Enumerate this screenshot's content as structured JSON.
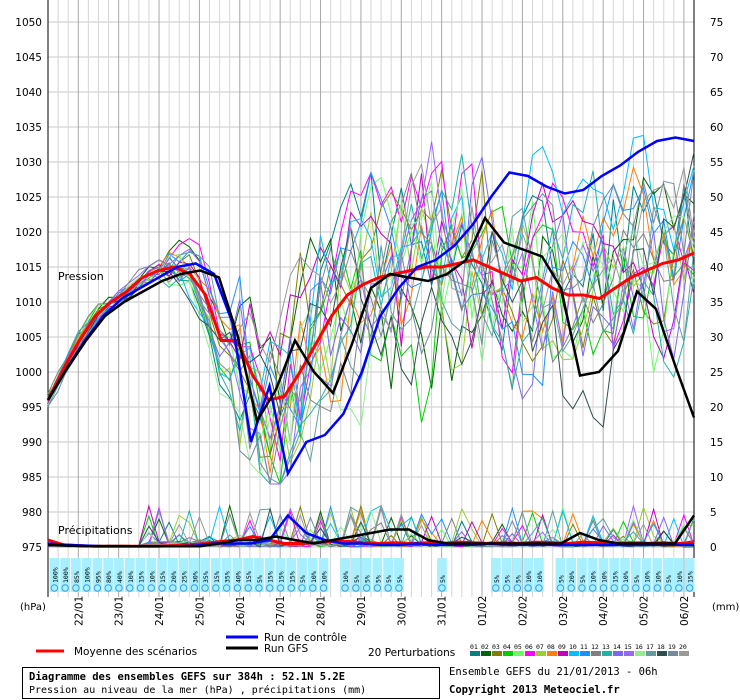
{
  "chart_data": {
    "type": "line",
    "labels": {
      "pressure": "Pression",
      "precip": "Précipitations",
      "left_unit": "(hPa)",
      "right_unit": "(mm)"
    },
    "left_axis": {
      "min": 975,
      "max": 1050,
      "ticks": [
        975,
        980,
        985,
        990,
        995,
        1000,
        1005,
        1010,
        1015,
        1020,
        1025,
        1030,
        1035,
        1040,
        1045,
        1050
      ]
    },
    "right_axis": {
      "min": 0,
      "max": 75,
      "ticks": [
        0,
        5,
        10,
        15,
        20,
        25,
        30,
        35,
        40,
        45,
        50,
        55,
        60,
        65,
        70,
        75
      ]
    },
    "x_hours": {
      "min": 0,
      "max": 384,
      "day_start_offset": 18
    },
    "dates": [
      "22/01",
      "23/01",
      "24/01",
      "25/01",
      "26/01",
      "27/01",
      "28/01",
      "29/01",
      "30/01",
      "31/01",
      "01/02",
      "02/02",
      "03/02",
      "04/02",
      "05/02",
      "06/02"
    ],
    "probabilities": [
      "100%",
      "100%",
      "85%",
      "100%",
      "95%",
      "80%",
      "40%",
      "10%",
      "15%",
      "10%",
      "15%",
      "20%",
      "25%",
      "30%",
      "35%",
      "15%",
      "35%",
      "40%",
      "15%",
      "5%",
      "15%",
      "15%",
      "15%",
      "5%",
      "10%",
      "10%",
      "",
      "10%",
      "5%",
      "5%",
      "5%",
      "5%",
      "5%",
      "",
      "",
      "",
      "5%",
      "",
      "",
      "",
      "",
      "5%",
      "5%",
      "5%",
      "10%",
      "10%",
      "",
      "5%",
      "20%",
      "5%",
      "10%",
      "10%",
      "15%",
      "10%",
      "5%",
      "10%",
      "10%",
      "5%",
      "10%",
      "15%"
    ],
    "series": [
      {
        "name": "Moyenne des scénarios",
        "color": "#ff0000",
        "pressure": [
          996,
          1000.5,
          1004.5,
          1008,
          1010,
          1011.5,
          1013.5,
          1014.5,
          1015,
          1014,
          1011,
          1004.5,
          1004.5,
          999.5,
          996,
          996.5,
          1000,
          1004,
          1008,
          1011,
          1012.5,
          1013.5,
          1014,
          1014.5,
          1015,
          1015,
          1015.5,
          1016,
          1015,
          1014,
          1013,
          1013.5,
          1012,
          1011,
          1011,
          1010.5,
          1012,
          1013.5,
          1014.5,
          1015.5,
          1016,
          1017
        ],
        "precip": [
          1,
          0.3,
          0.2,
          0.1,
          0.1,
          0.1,
          0.1,
          0.1,
          0.2,
          0.3,
          0.5,
          0.8,
          1,
          1.5,
          1,
          0.5,
          0.5,
          0.6,
          0.8,
          0.8,
          0.6,
          0.5,
          0.6,
          0.5,
          0.6,
          0.5,
          0.7,
          0.6,
          0.5,
          0.6,
          0.5,
          0.7,
          0.6,
          0.5,
          0.7,
          0.6,
          0.5,
          0.6,
          0.5,
          0.6,
          0.5,
          0.6
        ]
      },
      {
        "name": "Run de contrôle",
        "color": "#0000ff",
        "pressure": [
          996,
          1000.5,
          1004.5,
          1008,
          1010.5,
          1012,
          1013.5,
          1015,
          1015.5,
          1014,
          1007,
          990,
          998,
          985.5,
          990,
          991,
          994,
          1000,
          1008,
          1012,
          1015,
          1016,
          1018,
          1021,
          1025,
          1028.5,
          1028,
          1026.5,
          1025.5,
          1026,
          1028,
          1029.5,
          1031.5,
          1033,
          1033.5,
          1033
        ],
        "precip": [
          0.5,
          0.3,
          0.2,
          0.1,
          0.1,
          0.1,
          0.1,
          0.1,
          0.2,
          0.5,
          0.5,
          0.5,
          1,
          4.5,
          2,
          1,
          0.5,
          0.5,
          0.3,
          0.3,
          0.5,
          0.3,
          0.3,
          0.3,
          0.5,
          0.3,
          0.3,
          0.3,
          0.3,
          0.3,
          0.3,
          0.3,
          0.3,
          0.3,
          0.3,
          0.3
        ]
      },
      {
        "name": "Run GFS",
        "color": "#000000",
        "pressure": [
          996,
          1000.5,
          1004.5,
          1008,
          1010,
          1011.5,
          1013,
          1014,
          1014.5,
          1013.5,
          1005,
          993,
          997.5,
          1004.5,
          1000,
          997,
          1004,
          1012,
          1014,
          1013.5,
          1013,
          1014,
          1016,
          1022,
          1018.5,
          1017.5,
          1016.5,
          1012,
          999.5,
          1000,
          1003,
          1011.5,
          1009,
          1001,
          993.5
        ],
        "precip": [
          0.3,
          0.2,
          0.1,
          0.1,
          0.1,
          0.1,
          0.1,
          0.1,
          0.1,
          0.5,
          1,
          1,
          1.5,
          1,
          0.5,
          1,
          1.5,
          2,
          2.5,
          2.5,
          1,
          0.5,
          0.5,
          0.5,
          0.5,
          0.5,
          0.5,
          0.5,
          2,
          1,
          0.5,
          0.5,
          0.5,
          0.5,
          4.5
        ]
      }
    ]
  },
  "legend": {
    "moyenne": "Moyenne des scénarios",
    "controle": "Run de contrôle",
    "gfs": "Run GFS",
    "perturbations": "20 Perturbations",
    "pert_numbers": [
      "01",
      "02",
      "03",
      "04",
      "05",
      "06",
      "07",
      "08",
      "09",
      "10",
      "11",
      "12",
      "13",
      "14",
      "15",
      "16",
      "17",
      "18",
      "19",
      "20"
    ],
    "pert_colors": [
      "#008080",
      "#006400",
      "#808000",
      "#00cc00",
      "#66ff66",
      "#ff00ff",
      "#9acd32",
      "#ff7f00",
      "#c000c0",
      "#00bfff",
      "#1e90ff",
      "#808080",
      "#20b2aa",
      "#7b68ee",
      "#9966ff",
      "#90ee90",
      "#5f9ea0",
      "#2f4f4f",
      "#778899",
      "#999999"
    ]
  },
  "footer": {
    "title_line1": "Diagramme des ensembles GEFS sur 384h : 52.1N 5.2E",
    "title_line2": "Pression au niveau de la mer (hPa) , précipitations (mm)",
    "ensemble_info": "Ensemble GEFS du 21/01/2013 - 06h",
    "copyright": "Copyright 2013 Meteociel.fr"
  }
}
